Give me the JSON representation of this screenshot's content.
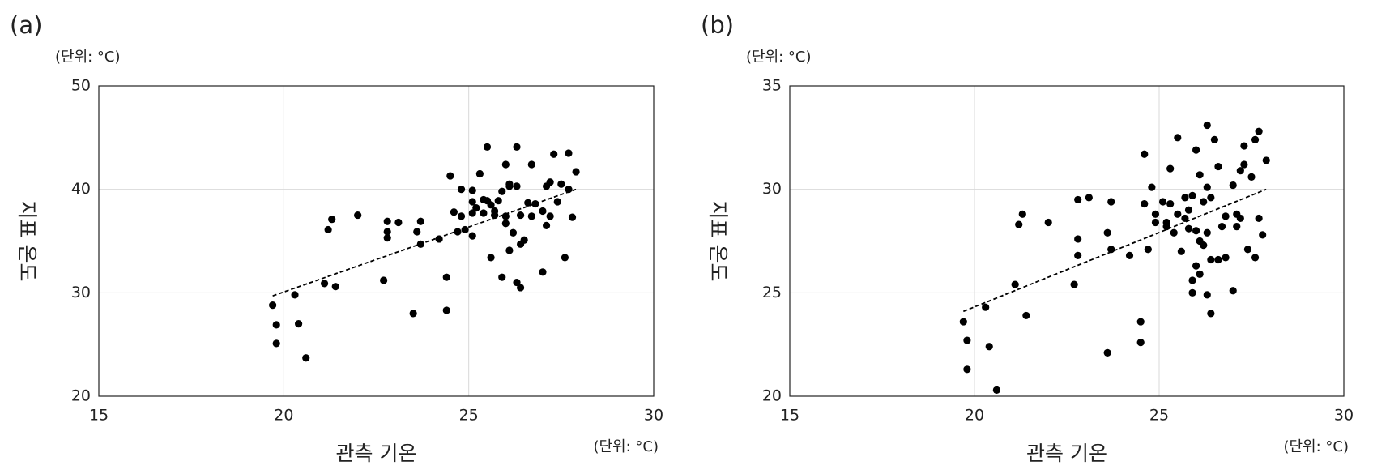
{
  "chart_data": [
    {
      "type": "scatter",
      "panel_label": "(a)",
      "y_unit": "(단위: °C)",
      "x_unit": "(단위: °C)",
      "xlabel": "관측 기온",
      "ylabel": "지표 온도",
      "color": "#000000",
      "grid": true,
      "xlim": [
        15,
        30
      ],
      "xticks": [
        15,
        20,
        25,
        30
      ],
      "ylim": [
        20,
        50
      ],
      "yticks": [
        20,
        30,
        40,
        50
      ],
      "x": [
        19.7,
        19.8,
        19.8,
        20.3,
        20.4,
        20.6,
        21.1,
        21.2,
        21.3,
        21.4,
        22.0,
        22.7,
        22.8,
        22.8,
        22.8,
        23.1,
        23.5,
        23.6,
        23.7,
        23.7,
        24.2,
        24.4,
        24.4,
        24.5,
        24.6,
        24.7,
        24.8,
        24.8,
        24.9,
        25.1,
        25.1,
        25.1,
        25.1,
        25.2,
        25.3,
        25.4,
        25.5,
        25.4,
        25.5,
        25.6,
        25.6,
        25.7,
        25.7,
        25.8,
        25.9,
        25.9,
        26.0,
        26.0,
        26.0,
        26.1,
        26.1,
        26.1,
        26.2,
        26.3,
        26.3,
        26.3,
        26.4,
        26.4,
        26.4,
        26.5,
        26.6,
        26.7,
        26.7,
        26.8,
        27.0,
        27.0,
        27.1,
        27.1,
        27.2,
        27.2,
        27.3,
        27.4,
        27.5,
        27.6,
        27.7,
        27.7,
        27.8,
        27.9
      ],
      "values": [
        28.8,
        26.9,
        25.1,
        29.8,
        27.0,
        23.7,
        30.9,
        36.1,
        37.1,
        30.6,
        37.5,
        31.2,
        36.9,
        35.9,
        35.3,
        36.8,
        28.0,
        35.9,
        36.9,
        34.7,
        35.2,
        31.5,
        28.3,
        41.3,
        37.8,
        35.9,
        40.0,
        37.4,
        36.1,
        39.9,
        38.8,
        37.7,
        35.5,
        38.2,
        41.5,
        39.0,
        44.1,
        37.7,
        38.9,
        38.5,
        33.4,
        37.9,
        37.5,
        38.9,
        39.8,
        31.5,
        37.4,
        42.4,
        36.7,
        40.3,
        34.1,
        40.5,
        35.8,
        31.0,
        44.1,
        40.3,
        37.5,
        30.5,
        34.7,
        35.1,
        38.7,
        42.4,
        37.4,
        38.6,
        32.0,
        37.9,
        36.5,
        40.3,
        37.4,
        40.7,
        43.4,
        38.8,
        40.5,
        33.4,
        43.5,
        40.0,
        37.3,
        41.7
      ],
      "trendline": {
        "x": [
          19.7,
          27.9
        ],
        "y": [
          29.7,
          40.0
        ]
      }
    },
    {
      "type": "scatter",
      "panel_label": "(b)",
      "y_unit": "(단위: °C)",
      "x_unit": "(단위: °C)",
      "xlabel": "관측 기온",
      "ylabel": "지표 온도",
      "color": "#000000",
      "grid": true,
      "xlim": [
        15,
        30
      ],
      "xticks": [
        15,
        20,
        25,
        30
      ],
      "ylim": [
        20,
        35
      ],
      "yticks": [
        20,
        25,
        30,
        35
      ],
      "x": [
        19.7,
        19.8,
        19.8,
        20.3,
        20.4,
        20.6,
        21.1,
        21.2,
        21.3,
        21.4,
        22.0,
        22.7,
        22.8,
        22.8,
        22.8,
        23.1,
        23.6,
        23.6,
        23.7,
        23.7,
        24.2,
        24.5,
        24.5,
        24.6,
        24.6,
        24.7,
        24.8,
        24.9,
        24.9,
        25.1,
        25.2,
        25.2,
        25.3,
        25.3,
        25.4,
        25.5,
        25.5,
        25.6,
        25.7,
        25.7,
        25.8,
        25.8,
        25.9,
        25.9,
        25.9,
        26.0,
        26.0,
        26.0,
        26.1,
        26.1,
        26.1,
        26.2,
        26.2,
        26.3,
        26.3,
        26.3,
        26.3,
        26.4,
        26.4,
        26.4,
        26.5,
        26.6,
        26.6,
        26.7,
        26.8,
        26.8,
        27.0,
        27.0,
        27.1,
        27.1,
        27.2,
        27.2,
        27.3,
        27.3,
        27.4,
        27.5,
        27.6,
        27.6,
        27.7,
        27.7,
        27.8,
        27.9
      ],
      "values": [
        23.6,
        22.7,
        21.3,
        24.3,
        22.4,
        20.3,
        25.4,
        28.3,
        28.8,
        23.9,
        28.4,
        25.4,
        26.8,
        27.6,
        29.5,
        29.6,
        22.1,
        27.9,
        29.4,
        27.1,
        26.8,
        23.6,
        22.6,
        31.7,
        29.3,
        27.1,
        30.1,
        28.8,
        28.4,
        29.4,
        28.4,
        28.2,
        29.3,
        31.0,
        27.9,
        28.8,
        32.5,
        27.0,
        29.6,
        28.6,
        29.0,
        28.1,
        29.7,
        25.0,
        25.6,
        28.0,
        31.9,
        26.3,
        27.5,
        30.7,
        25.9,
        29.4,
        27.3,
        27.9,
        33.1,
        24.9,
        30.1,
        29.6,
        24.0,
        26.6,
        32.4,
        26.6,
        31.1,
        28.2,
        28.7,
        26.7,
        30.2,
        25.1,
        28.2,
        28.8,
        30.9,
        28.6,
        31.2,
        32.1,
        27.1,
        30.6,
        26.7,
        32.4,
        32.8,
        28.6,
        27.8,
        31.4
      ],
      "trendline": {
        "x": [
          19.7,
          27.9
        ],
        "y": [
          24.1,
          30.0
        ]
      }
    }
  ]
}
